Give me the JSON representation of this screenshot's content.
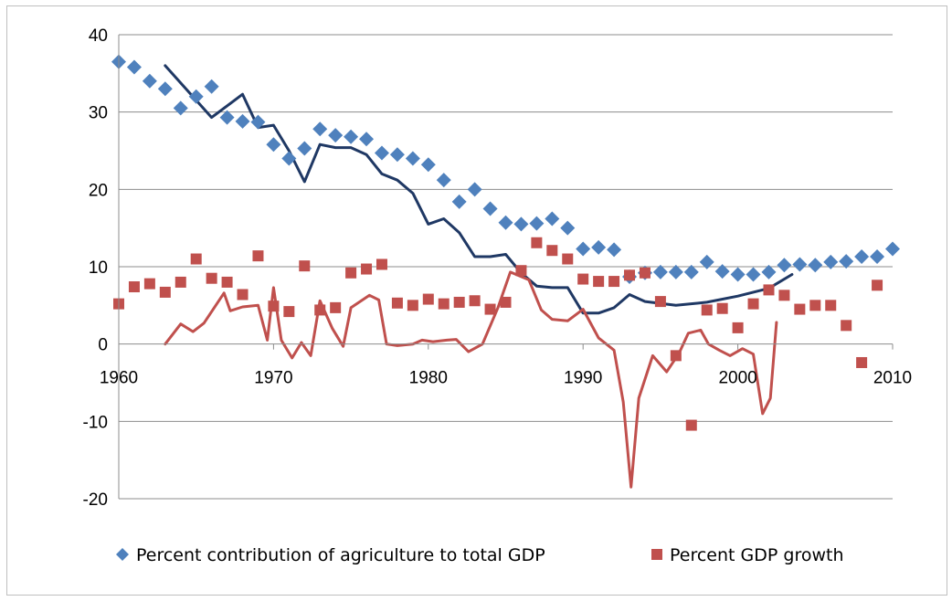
{
  "chart_data": {
    "type": "scatter",
    "title": "",
    "xlabel": "",
    "ylabel": "",
    "xlim": [
      1960,
      2010
    ],
    "ylim": [
      -20,
      40
    ],
    "x_ticks": [
      "1960",
      "1970",
      "1980",
      "1990",
      "2000",
      "2010"
    ],
    "y_ticks": [
      "-20",
      "-10",
      "0",
      "10",
      "20",
      "30",
      "40"
    ],
    "grid": "horizontal",
    "legend": "bottom",
    "series": [
      {
        "name": "Percent contribution of agriculture to total GDP",
        "marker": "diamond",
        "color": "#4f81bd",
        "x": [
          1960,
          1961,
          1962,
          1963,
          1964,
          1965,
          1966,
          1967,
          1968,
          1969,
          1970,
          1971,
          1972,
          1973,
          1974,
          1975,
          1976,
          1977,
          1978,
          1979,
          1980,
          1981,
          1982,
          1983,
          1984,
          1985,
          1986,
          1987,
          1988,
          1989,
          1990,
          1991,
          1992,
          1993,
          1994,
          1995,
          1996,
          1997,
          1998,
          1999,
          2000,
          2001,
          2002,
          2003,
          2004,
          2005,
          2006,
          2007,
          2008,
          2009,
          2010
        ],
        "y": [
          36.5,
          35.8,
          34.0,
          33.0,
          30.5,
          32.0,
          33.3,
          29.3,
          28.8,
          28.7,
          25.8,
          24.0,
          25.3,
          27.8,
          27.0,
          26.8,
          26.5,
          24.7,
          24.5,
          24.0,
          23.2,
          21.2,
          18.4,
          20.0,
          17.5,
          15.7,
          15.5,
          15.6,
          16.2,
          15.0,
          12.3,
          12.5,
          12.2,
          8.7,
          9.2,
          9.3,
          9.3,
          9.3,
          10.6,
          9.4,
          9.0,
          9.0,
          9.3,
          10.2,
          10.3,
          10.2,
          10.6,
          10.7,
          11.3,
          11.3,
          12.3
        ]
      },
      {
        "name": "Percent GDP growth",
        "marker": "square",
        "color": "#c0504d",
        "x": [
          1960,
          1961,
          1962,
          1963,
          1964,
          1965,
          1966,
          1967,
          1968,
          1969,
          1970,
          1971,
          1972,
          1973,
          1974,
          1975,
          1976,
          1977,
          1978,
          1979,
          1980,
          1981,
          1982,
          1983,
          1984,
          1985,
          1986,
          1987,
          1988,
          1989,
          1990,
          1991,
          1992,
          1993,
          1994,
          1995,
          1996,
          1997,
          1998,
          1999,
          2000,
          2001,
          2002,
          2003,
          2004,
          2005,
          2006,
          2007,
          2008,
          2009
        ],
        "y": [
          5.2,
          7.4,
          7.8,
          6.7,
          8.0,
          11.0,
          8.5,
          8.0,
          6.4,
          11.4,
          4.9,
          4.2,
          10.1,
          4.4,
          4.7,
          9.2,
          9.7,
          10.3,
          5.3,
          5.0,
          5.8,
          5.2,
          5.4,
          5.6,
          4.5,
          5.4,
          9.5,
          13.1,
          12.1,
          11.0,
          8.4,
          8.1,
          8.1,
          8.9,
          9.2,
          5.5,
          -1.5,
          -10.5,
          4.4,
          4.6,
          2.1,
          5.2,
          7.0,
          6.3,
          4.5,
          5.0,
          5.0,
          2.4,
          -2.4,
          7.6
        ]
      }
    ],
    "trend_lines": [
      {
        "color": "#1f3864",
        "x": [
          1963,
          1966,
          1968,
          1969,
          1970,
          1971,
          1972,
          1973,
          1974,
          1975,
          1976,
          1977,
          1978,
          1979,
          1980,
          1981,
          1982,
          1983,
          1984,
          1985,
          1986,
          1987,
          1988,
          1989,
          1990,
          1991,
          1992,
          1993,
          1994,
          1996,
          1998,
          2000,
          2002,
          2003.5
        ],
        "y": [
          36,
          29.3,
          32.3,
          28,
          28.3,
          25,
          21,
          25.8,
          25.4,
          25.4,
          24.5,
          22,
          21.2,
          19.5,
          15.5,
          16.2,
          14.4,
          11.3,
          11.3,
          11.6,
          9.2,
          7.5,
          7.3,
          7.3,
          4.0,
          4.0,
          4.7,
          6.4,
          5.5,
          5.0,
          5.4,
          6.2,
          7.2,
          9.0
        ]
      },
      {
        "color": "#c0504d",
        "x": [
          1963,
          1964,
          1964.8,
          1965.5,
          1966.8,
          1967.2,
          1968,
          1969,
          1969.6,
          1970,
          1970.5,
          1971.2,
          1971.8,
          1972.4,
          1973,
          1973.8,
          1974.5,
          1975,
          1976.2,
          1976.8,
          1977.3,
          1978,
          1979,
          1979.6,
          1980.3,
          1981.2,
          1981.8,
          1982.6,
          1983.5,
          1984.5,
          1985.3,
          1986.5,
          1987.3,
          1988,
          1989,
          1990,
          1991,
          1992,
          1992.6,
          1993.1,
          1993.6,
          1994.5,
          1995.4,
          1996.2,
          1996.8,
          1997.6,
          1998.1,
          1998.8,
          1999.5,
          2000.3,
          2001,
          2001.6,
          2002.1,
          2002.5
        ],
        "y": [
          0,
          2.6,
          1.6,
          2.7,
          6.6,
          4.3,
          4.8,
          5.0,
          0.5,
          7.3,
          0.5,
          -1.8,
          0.2,
          -1.5,
          5.6,
          2.0,
          -0.3,
          4.7,
          6.3,
          5.7,
          0,
          -0.2,
          0,
          0.5,
          0.3,
          0.5,
          0.6,
          -1.0,
          0,
          4.7,
          9.3,
          8.3,
          4.4,
          3.2,
          3.0,
          4.5,
          0.8,
          -0.8,
          -7.5,
          -18.5,
          -7.0,
          -1.5,
          -3.6,
          -1.2,
          1.4,
          1.8,
          0,
          -0.8,
          -1.5,
          -0.6,
          -1.3,
          -9.0,
          -7.0,
          2.8
        ]
      }
    ]
  }
}
